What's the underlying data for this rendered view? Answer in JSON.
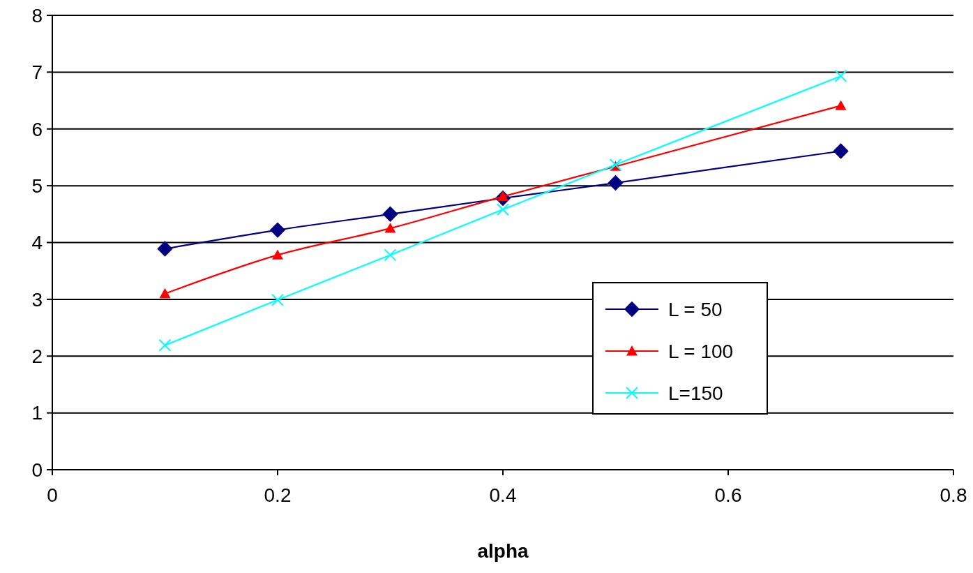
{
  "chart_data": {
    "type": "line",
    "xlabel": "alpha",
    "xlim": [
      0,
      0.8
    ],
    "xticks": [
      0,
      0.2,
      0.4,
      0.6,
      0.8
    ],
    "ylim": [
      0,
      8
    ],
    "yticks": [
      0,
      1,
      2,
      3,
      4,
      5,
      6,
      7,
      8
    ],
    "grid": "y",
    "legend": "right",
    "line_style": "solid",
    "series": [
      {
        "name": "L = 50",
        "color": "#000080",
        "marker": "diamond",
        "x": [
          0.1,
          0.2,
          0.3,
          0.4,
          0.5,
          0.7
        ],
        "values": [
          3.89,
          4.22,
          4.5,
          4.78,
          5.05,
          5.61
        ]
      },
      {
        "name": "L = 100",
        "color": "#ff0000",
        "marker": "triangle",
        "x": [
          0.1,
          0.2,
          0.3,
          0.4,
          0.5,
          0.7
        ],
        "values": [
          3.1,
          3.78,
          4.25,
          4.81,
          5.34,
          6.41
        ]
      },
      {
        "name": "L=150",
        "color": "#00ffff",
        "marker": "cross",
        "x": [
          0.1,
          0.2,
          0.3,
          0.4,
          0.5,
          0.7
        ],
        "values": [
          2.19,
          2.99,
          3.78,
          4.58,
          5.37,
          6.93
        ]
      }
    ]
  }
}
